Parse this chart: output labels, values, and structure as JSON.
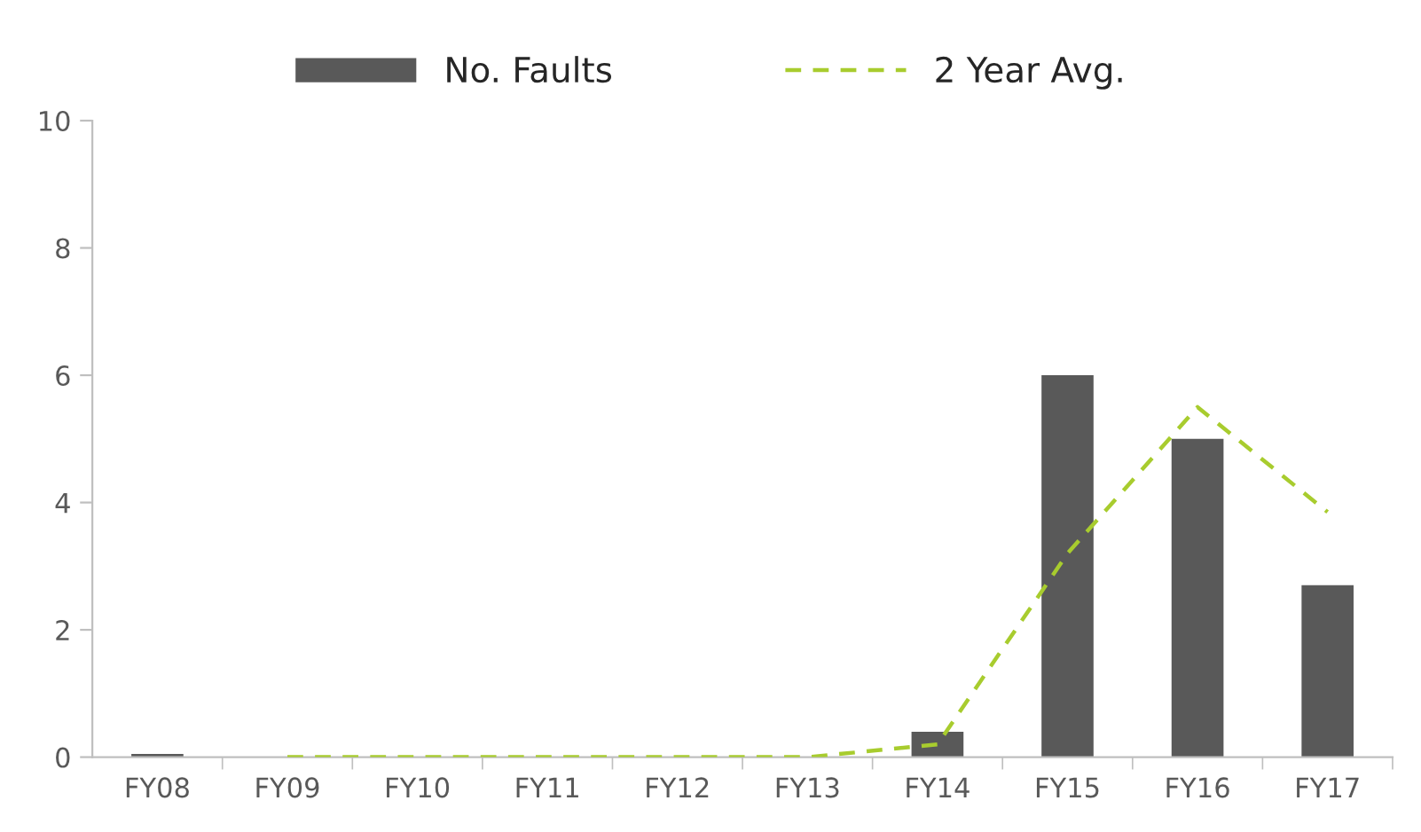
{
  "chart_data": {
    "type": "bar",
    "categories": [
      "FY08",
      "FY09",
      "FY10",
      "FY11",
      "FY12",
      "FY13",
      "FY14",
      "FY15",
      "FY16",
      "FY17"
    ],
    "series": [
      {
        "name": "No. Faults",
        "color": "#595959",
        "values": [
          0.05,
          0,
          0,
          0,
          0,
          0,
          0.4,
          6,
          5,
          2.7
        ]
      },
      {
        "name": "2 Year Avg.",
        "type": "line",
        "color": "#a8cc2e",
        "line_style": "dashed",
        "values": [
          null,
          0,
          0,
          0,
          0,
          0,
          0.2,
          3.2,
          5.5,
          3.85
        ]
      }
    ],
    "ylim": [
      0,
      10
    ],
    "yticks": [
      0,
      2,
      4,
      6,
      8,
      10
    ],
    "grid": false,
    "legend": "top",
    "marker": "none"
  }
}
